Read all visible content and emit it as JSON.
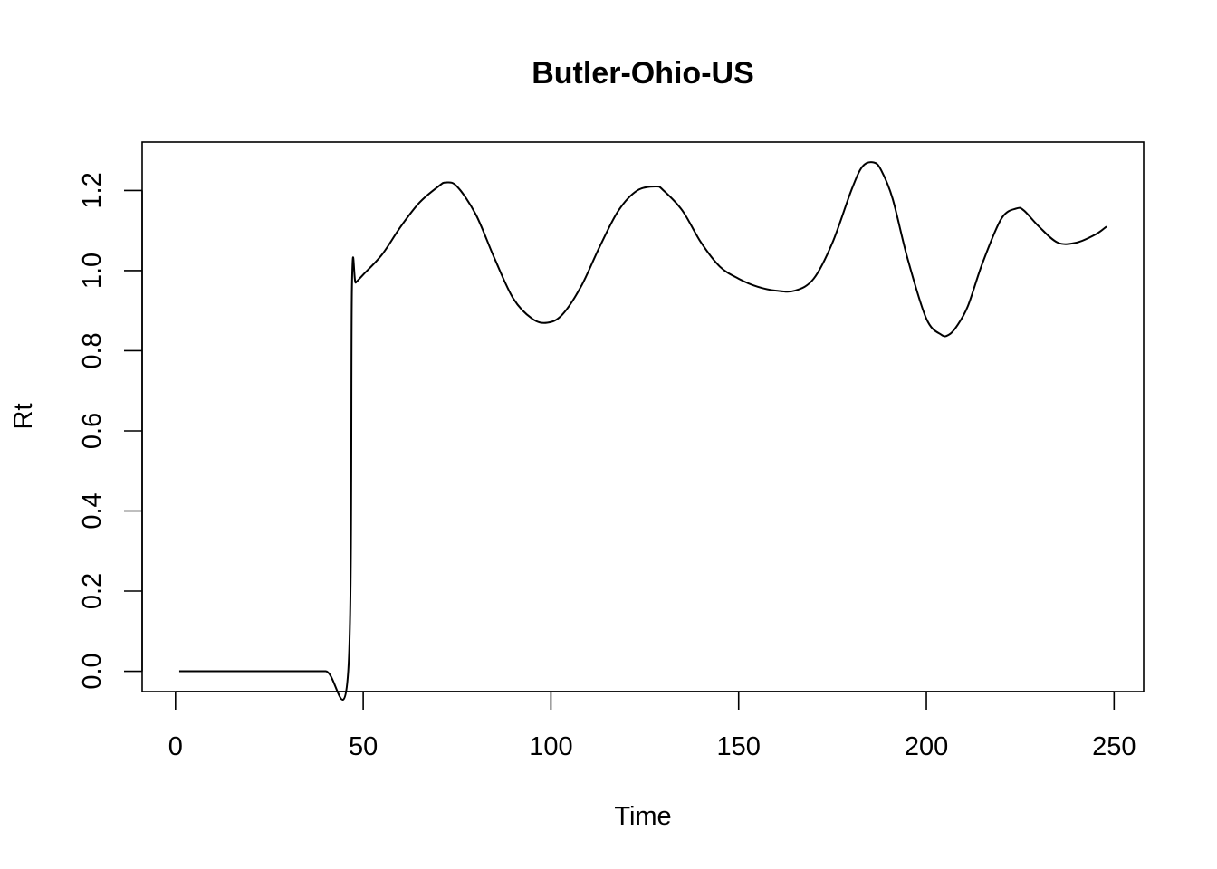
{
  "chart_data": {
    "type": "line",
    "title": "Butler-Ohio-US",
    "xlabel": "Time",
    "ylabel": "Rt",
    "xlim": [
      1,
      248
    ],
    "ylim": [
      0,
      1.27
    ],
    "x_ticks": [
      0,
      50,
      100,
      150,
      200,
      250
    ],
    "y_ticks": [
      0.0,
      0.2,
      0.4,
      0.6,
      0.8,
      1.0,
      1.2
    ],
    "x_tick_labels": [
      "0",
      "50",
      "100",
      "150",
      "200",
      "250"
    ],
    "y_tick_labels": [
      "0.0",
      "0.2",
      "0.4",
      "0.6",
      "0.8",
      "1.0",
      "1.2"
    ],
    "grid": false,
    "line_color": "#000000",
    "series": [
      {
        "x": [
          1,
          10,
          20,
          30,
          40,
          46,
          47,
          48,
          50,
          55,
          60,
          65,
          70,
          72,
          75,
          80,
          85,
          90,
          95,
          99,
          103,
          108,
          113,
          118,
          123,
          128,
          130,
          135,
          140,
          145,
          150,
          155,
          160,
          165,
          170,
          175,
          180,
          183,
          186,
          188,
          191,
          195,
          200,
          204,
          206,
          208,
          211,
          215,
          220,
          224,
          226,
          230,
          235,
          240,
          245,
          248
        ],
        "y": [
          0,
          0,
          0,
          0,
          0,
          0,
          0.96,
          0.97,
          0.99,
          1.04,
          1.11,
          1.17,
          1.21,
          1.22,
          1.21,
          1.14,
          1.03,
          0.93,
          0.88,
          0.87,
          0.89,
          0.96,
          1.06,
          1.15,
          1.2,
          1.21,
          1.2,
          1.15,
          1.07,
          1.01,
          0.98,
          0.96,
          0.95,
          0.95,
          0.98,
          1.07,
          1.2,
          1.26,
          1.27,
          1.25,
          1.18,
          1.03,
          0.88,
          0.84,
          0.84,
          0.86,
          0.91,
          1.02,
          1.13,
          1.155,
          1.15,
          1.11,
          1.07,
          1.07,
          1.09,
          1.11
        ]
      }
    ]
  }
}
